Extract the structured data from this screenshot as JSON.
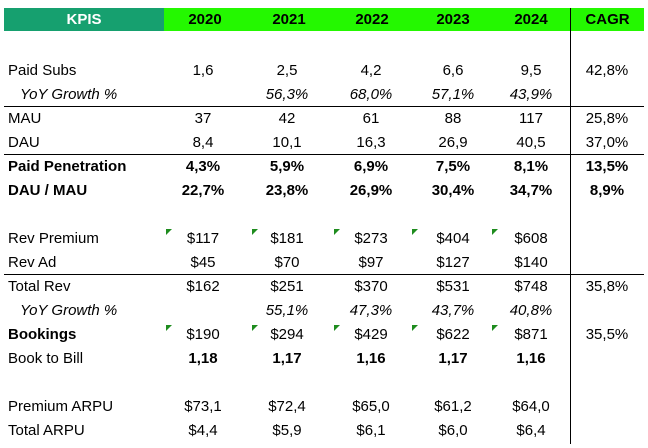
{
  "header": {
    "kpis": "KPIS",
    "years": [
      "2020",
      "2021",
      "2022",
      "2023",
      "2024"
    ],
    "cagr": "CAGR"
  },
  "rows": {
    "paid_subs": {
      "label": "Paid Subs",
      "values": [
        "1,6",
        "2,5",
        "4,2",
        "6,6",
        "9,5"
      ],
      "cagr": "42,8%"
    },
    "yoy_growth_subs": {
      "label": "YoY Growth %",
      "values": [
        "",
        "56,3%",
        "68,0%",
        "57,1%",
        "43,9%"
      ]
    },
    "mau": {
      "label": "MAU",
      "values": [
        "37",
        "42",
        "61",
        "88",
        "117"
      ],
      "cagr": "25,8%"
    },
    "dau": {
      "label": "DAU",
      "values": [
        "8,4",
        "10,1",
        "16,3",
        "26,9",
        "40,5"
      ],
      "cagr": "37,0%"
    },
    "paid_penetration": {
      "label": "Paid Penetration",
      "values": [
        "4,3%",
        "5,9%",
        "6,9%",
        "7,5%",
        "8,1%"
      ],
      "cagr": "13,5%"
    },
    "dau_mau": {
      "label": "DAU / MAU",
      "values": [
        "22,7%",
        "23,8%",
        "26,9%",
        "30,4%",
        "34,7%"
      ],
      "cagr": "8,9%"
    },
    "rev_premium": {
      "label": "Rev Premium",
      "values": [
        "$117",
        "$181",
        "$273",
        "$404",
        "$608"
      ]
    },
    "rev_ad": {
      "label": "Rev Ad",
      "values": [
        "$45",
        "$70",
        "$97",
        "$127",
        "$140"
      ]
    },
    "total_rev": {
      "label": "Total Rev",
      "values": [
        "$162",
        "$251",
        "$370",
        "$531",
        "$748"
      ],
      "cagr": "35,8%"
    },
    "yoy_growth_rev": {
      "label": "YoY Growth %",
      "values": [
        "",
        "55,1%",
        "47,3%",
        "43,7%",
        "40,8%"
      ]
    },
    "bookings": {
      "label": "Bookings",
      "values": [
        "$190",
        "$294",
        "$429",
        "$622",
        "$871"
      ],
      "cagr": "35,5%"
    },
    "book_to_bill": {
      "label": "Book to Bill",
      "values": [
        "1,18",
        "1,17",
        "1,16",
        "1,17",
        "1,16"
      ]
    },
    "premium_arpu": {
      "label": "Premium ARPU",
      "values": [
        "$73,1",
        "$72,4",
        "$65,0",
        "$61,2",
        "$64,0"
      ]
    },
    "total_arpu": {
      "label": "Total ARPU",
      "values": [
        "$4,4",
        "$5,9",
        "$6,1",
        "$6,0",
        "$6,4"
      ]
    }
  },
  "colors": {
    "header_green": "#24f800",
    "kpi_header": "#16a06f",
    "comment_marker": "#1e8c1e"
  }
}
